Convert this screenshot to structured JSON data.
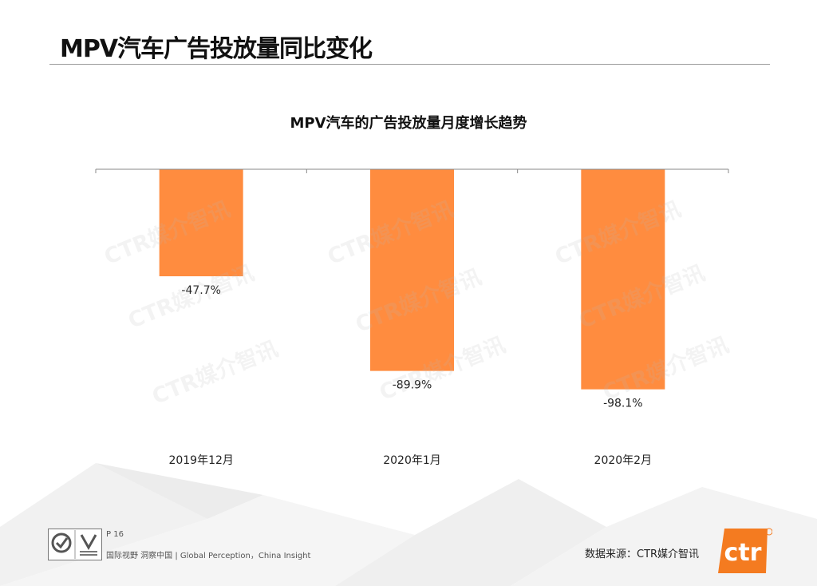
{
  "slide": {
    "title": "MPV汽车广告投放量同比变化",
    "page_number": "P 16",
    "slogan": "国际视野  洞察中国 |  Global Perception，China Insight",
    "source": "数据来源：CTR媒介智讯",
    "logo_text": "ctr",
    "watermark_text": "CTR媒介智讯",
    "colors": {
      "bar": "#FF8C3F",
      "logo": "#F47B20",
      "axis": "#888888"
    }
  },
  "chart_data": {
    "type": "bar",
    "title": "MPV汽车的广告投放量月度增长趋势",
    "categories": [
      "2019年12月",
      "2020年1月",
      "2020年2月"
    ],
    "values": [
      -47.7,
      -89.9,
      -98.1
    ],
    "value_labels": [
      "-47.7%",
      "-89.9%",
      "-98.1%"
    ],
    "ylim": [
      -100,
      0
    ],
    "grid": false,
    "xlabel": "",
    "ylabel": ""
  }
}
